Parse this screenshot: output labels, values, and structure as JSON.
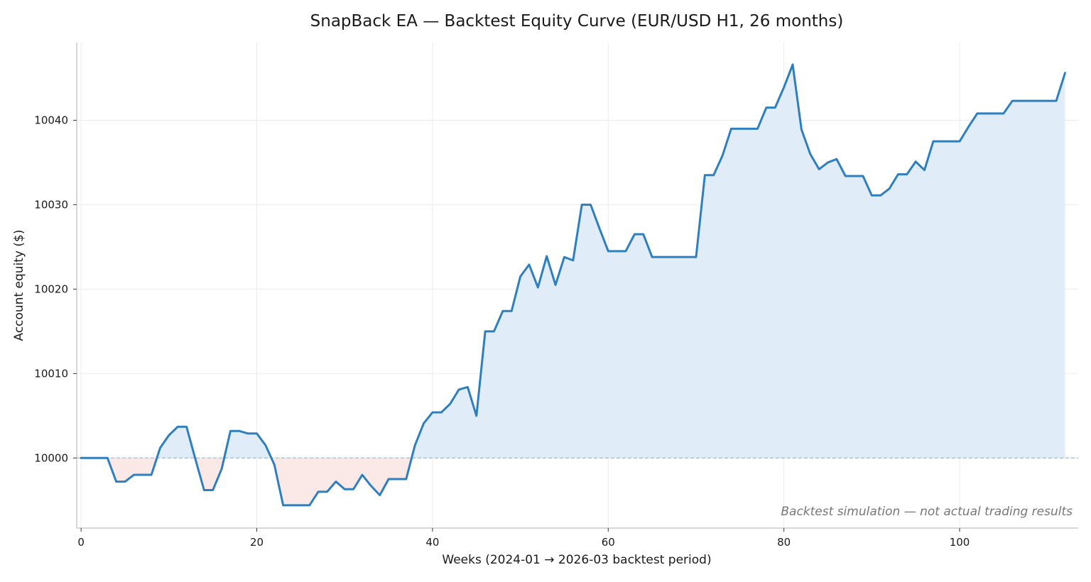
{
  "chart_data": {
    "type": "area",
    "title": "SnapBack EA — Backtest Equity Curve (EUR/USD H1, 26 months)",
    "xlabel": "Weeks (2024-01 → 2026-03 backtest period)",
    "ylabel": "Account equity ($)",
    "annotation": "Backtest simulation — not actual trading results",
    "xlim": [
      -0.5,
      113.5
    ],
    "ylim": [
      9991.7,
      10049.2
    ],
    "xticks": [
      0,
      20,
      40,
      60,
      80,
      100
    ],
    "yticks": [
      10000,
      10010,
      10020,
      10030,
      10040
    ],
    "baseline": 10000,
    "grid": true,
    "colors": {
      "line": "#2f7fbf",
      "gain_fill": "#e0ecf7",
      "loss_fill": "#fbe9e7",
      "baseline": "#8fbfe0",
      "grid": "#ebebeb",
      "axis": "#bfbfbf",
      "annotation": "#777777"
    },
    "series": [
      {
        "x": [
          0,
          1,
          2,
          3,
          4,
          5,
          6,
          7,
          8,
          9,
          10,
          11,
          12,
          13,
          14,
          15,
          16,
          17,
          18,
          19,
          20,
          21,
          22,
          23,
          24,
          25,
          26,
          27,
          28,
          29,
          30,
          31,
          32,
          33,
          34,
          35,
          36,
          37,
          38,
          39,
          40,
          41,
          42,
          43,
          44,
          45,
          46,
          47,
          48,
          49,
          50,
          51,
          52,
          53,
          54,
          55,
          56,
          57,
          58,
          59,
          60,
          61,
          62,
          63,
          64,
          65,
          66,
          67,
          68,
          69,
          70,
          71,
          72,
          73,
          74,
          75,
          76,
          77,
          78,
          79,
          80,
          81,
          82,
          83,
          84,
          85,
          86,
          87,
          88,
          89,
          90,
          91,
          92,
          93,
          94,
          95,
          96,
          97,
          98,
          99,
          100,
          101,
          102,
          103,
          104,
          105,
          106,
          107,
          108,
          109,
          110,
          111,
          112
        ],
        "values": [
          10000,
          10000,
          10000,
          10000,
          9997.2,
          9997.2,
          9998,
          9998,
          9998,
          10001.2,
          10002.7,
          10003.7,
          10003.7,
          9999.9,
          9996.2,
          9996.2,
          9998.7,
          10003.2,
          10003.2,
          10002.9,
          10002.9,
          10001.5,
          9999.2,
          9994.4,
          9994.4,
          9994.4,
          9994.4,
          9996,
          9996,
          9997.2,
          9996.3,
          9996.3,
          9998,
          9996.7,
          9995.6,
          9997.5,
          9997.5,
          9997.5,
          10001.5,
          10004.1,
          10005.4,
          10005.4,
          10006.4,
          10008.1,
          10008.4,
          10005,
          10015,
          10015,
          10017.4,
          10017.4,
          10021.5,
          10022.9,
          10020.2,
          10023.9,
          10020.5,
          10023.8,
          10023.4,
          10030,
          10030,
          10027.2,
          10024.5,
          10024.5,
          10024.5,
          10026.5,
          10026.5,
          10023.8,
          10023.8,
          10023.8,
          10023.8,
          10023.8,
          10023.8,
          10033.5,
          10033.5,
          10035.8,
          10039,
          10039,
          10039,
          10039,
          10041.5,
          10041.5,
          10043.9,
          10046.6,
          10038.9,
          10036,
          10034.2,
          10035,
          10035.4,
          10033.4,
          10033.4,
          10033.4,
          10031.1,
          10031.1,
          10031.9,
          10033.6,
          10033.6,
          10035.1,
          10034.1,
          10037.5,
          10037.5,
          10037.5,
          10037.5,
          10039.2,
          10040.8,
          10040.8,
          10040.8,
          10040.8,
          10042.3,
          10042.3,
          10042.3,
          10042.3,
          10042.3,
          10042.3,
          10045.6
        ]
      }
    ]
  }
}
